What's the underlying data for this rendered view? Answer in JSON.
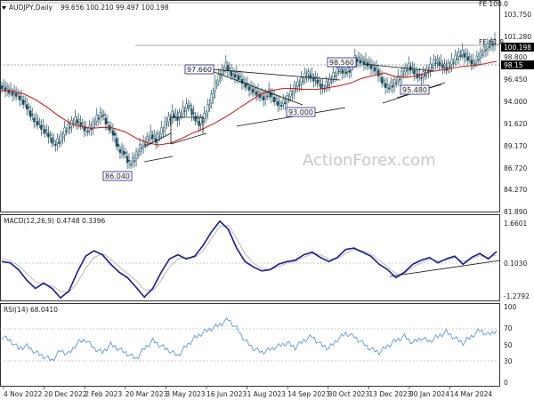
{
  "chart_data": [
    {
      "type": "candlestick",
      "title": "AUDJPY,Daily",
      "ohlc_label": "99.656 100.210 99.497 100.198",
      "last_price": 100.198,
      "ema_value": 98.15,
      "fib_labels": [
        "FE 100.0",
        "FE 61.8"
      ],
      "price_labels": [
        "103.750",
        "101.280",
        "98.800",
        "96.450",
        "94.000",
        "91.620",
        "89.170",
        "86.720",
        "84.270",
        "81.890"
      ],
      "ylim": [
        81.89,
        104.4
      ],
      "annotations": [
        {
          "text": "97.660",
          "value": 97.66
        },
        {
          "text": "98.560",
          "value": 98.56
        },
        {
          "text": "93.000",
          "value": 93.0
        },
        {
          "text": "95.480",
          "value": 95.48
        },
        {
          "text": "86.040",
          "value": 86.04
        }
      ],
      "x_labels": [
        "4 Nov 2022",
        "20 Dec 2022",
        "2 Feb 2023",
        "20 Mar 2023",
        "3 May 2023",
        "16 Jun 2023",
        "1 Aug 2023",
        "14 Sep 2023",
        "30 Oct 2023",
        "13 Dec 2023",
        "30 Jan 2024",
        "14 Mar 2024"
      ],
      "price_points": [
        95.5,
        95.2,
        94.8,
        94.6,
        94.0,
        93.2,
        92.0,
        91.5,
        90.8,
        90.2,
        89.2,
        89.5,
        90.6,
        91.2,
        91.8,
        91.4,
        90.6,
        91.0,
        92.0,
        92.4,
        91.2,
        90.4,
        88.6,
        88.3,
        87.0,
        87.6,
        88.8,
        89.4,
        90.2,
        89.6,
        90.6,
        91.6,
        92.4,
        92.0,
        92.8,
        93.4,
        92.2,
        91.4,
        92.2,
        93.6,
        95.6,
        96.8,
        97.7,
        96.8,
        96.6,
        96.0,
        95.4,
        95.0,
        94.6,
        94.2,
        94.8,
        94.0,
        93.4,
        93.8,
        94.6,
        95.4,
        96.0,
        96.8,
        96.4,
        96.0,
        95.2,
        95.8,
        96.6,
        97.3,
        97.0,
        97.2,
        98.4,
        98.2,
        98.0,
        97.6,
        97.2,
        96.0,
        95.3,
        95.6,
        96.2,
        97.0,
        97.6,
        97.0,
        96.4,
        96.8,
        97.5,
        98.2,
        97.8,
        97.4,
        98.0,
        98.7,
        99.0,
        98.5,
        97.9,
        98.6,
        99.4,
        99.9,
        100.2
      ],
      "ema_points": [
        95.0,
        94.9,
        94.6,
        94.0,
        93.2,
        92.3,
        91.5,
        91.1,
        90.9,
        91.0,
        90.9,
        90.5,
        89.8,
        89.3,
        89.1,
        89.3,
        89.8,
        90.4,
        90.9,
        91.5,
        92.2,
        93.0,
        93.8,
        94.6,
        95.0,
        95.2,
        95.2,
        95.1,
        95.1,
        95.3,
        95.5,
        95.8,
        96.3,
        96.6,
        96.9,
        96.5,
        96.4,
        96.6,
        97.0,
        97.2,
        97.4,
        97.6,
        97.7,
        97.9,
        98.15
      ],
      "trendlines": "Symmetrical triangle pattern marked between 97.660 and 93.000; rising channel lines below price."
    },
    {
      "type": "line",
      "title": "MACD(12,26,9) 0.4748 0.3396",
      "y_labels": [
        "1.6601",
        "0.1030",
        "-1.2792"
      ],
      "ylim": [
        -1.2792,
        1.6601
      ],
      "macd_points": [
        0.1,
        0.05,
        -0.2,
        -0.6,
        -0.9,
        -0.7,
        -0.9,
        -1.25,
        -1.0,
        -0.3,
        0.3,
        0.5,
        0.35,
        0.0,
        -0.3,
        -0.5,
        -0.85,
        -1.22,
        -0.9,
        -0.3,
        0.2,
        0.35,
        0.2,
        0.3,
        0.7,
        1.2,
        1.6,
        1.3,
        0.6,
        0.1,
        -0.1,
        -0.25,
        -0.2,
        0.0,
        0.1,
        0.15,
        0.35,
        0.45,
        0.25,
        0.1,
        0.25,
        0.55,
        0.6,
        0.45,
        0.3,
        0.0,
        -0.2,
        -0.5,
        -0.3,
        0.0,
        0.15,
        0.25,
        0.05,
        0.2,
        0.3,
        0.0,
        0.25,
        0.4,
        0.2,
        0.47
      ],
      "signal_points": [
        0.2,
        0.12,
        -0.05,
        -0.35,
        -0.65,
        -0.75,
        -0.8,
        -1.0,
        -1.05,
        -0.7,
        -0.15,
        0.25,
        0.4,
        0.2,
        -0.1,
        -0.35,
        -0.6,
        -0.95,
        -1.0,
        -0.6,
        -0.1,
        0.2,
        0.25,
        0.25,
        0.5,
        0.95,
        1.4,
        1.45,
        0.95,
        0.4,
        0.05,
        -0.15,
        -0.2,
        -0.1,
        0.05,
        0.1,
        0.25,
        0.4,
        0.35,
        0.2,
        0.2,
        0.4,
        0.55,
        0.5,
        0.38,
        0.15,
        -0.1,
        -0.35,
        -0.35,
        -0.1,
        0.05,
        0.2,
        0.12,
        0.15,
        0.25,
        0.1,
        0.18,
        0.32,
        0.25,
        0.34
      ]
    },
    {
      "type": "line",
      "title": "RSI(14) 68.0410",
      "y_labels": [
        "100",
        "70",
        "50",
        "30",
        "0"
      ],
      "ylim": [
        0,
        100
      ],
      "rsi_points": [
        60,
        55,
        45,
        48,
        40,
        35,
        30,
        42,
        38,
        52,
        56,
        45,
        40,
        50,
        44,
        38,
        32,
        45,
        55,
        48,
        42,
        36,
        48,
        58,
        65,
        70,
        75,
        82,
        70,
        55,
        45,
        40,
        44,
        48,
        52,
        46,
        55,
        60,
        50,
        45,
        56,
        64,
        60,
        52,
        44,
        40,
        48,
        55,
        60,
        52,
        58,
        54,
        60,
        66,
        58,
        52,
        60,
        68,
        62,
        68
      ]
    }
  ]
}
